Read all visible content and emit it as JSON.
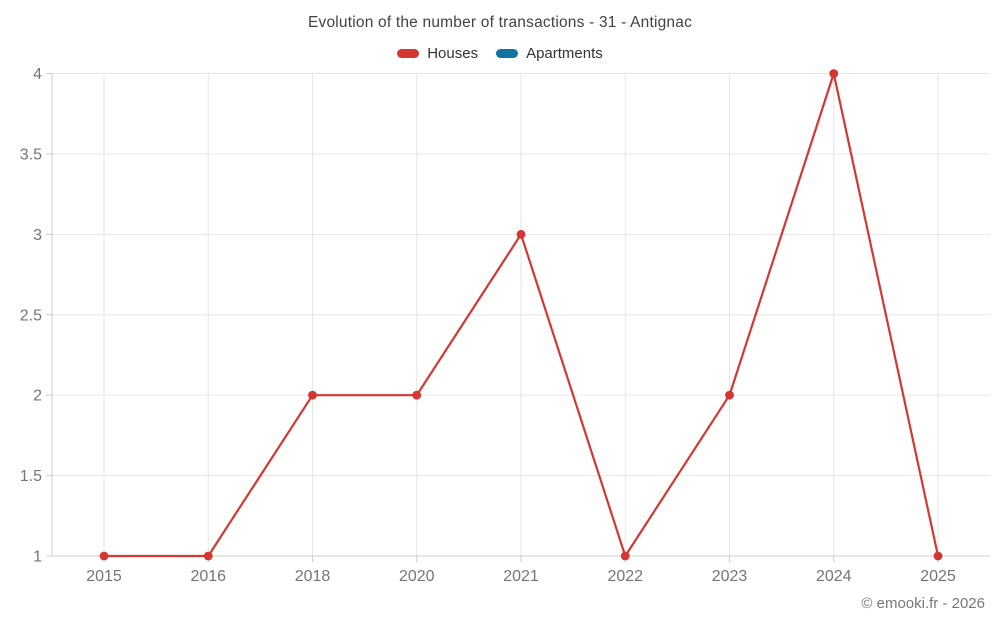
{
  "title": "Evolution of the number of transactions - 31 - Antignac",
  "watermark": "© emooki.fr - 2026",
  "legend": [
    {
      "label": "Houses",
      "color": "#d43732"
    },
    {
      "label": "Apartments",
      "color": "#11749e"
    }
  ],
  "colors": {
    "grid": "#e6e6e6",
    "axis": "#cccccc",
    "axis_text": "#757575",
    "title_text": "#424242"
  },
  "chart_data": {
    "type": "line",
    "title": "Evolution of the number of transactions - 31 - Antignac",
    "categories": [
      "2015",
      "2016",
      "2018",
      "2020",
      "2021",
      "2022",
      "2023",
      "2024",
      "2025"
    ],
    "series": [
      {
        "name": "Houses",
        "color": "#d43732",
        "values": [
          1,
          1,
          2,
          2,
          3,
          1,
          2,
          4,
          1
        ]
      },
      {
        "name": "Apartments",
        "color": "#11749e",
        "values": []
      }
    ],
    "xlabel": "",
    "ylabel": "",
    "ylim": [
      1,
      4
    ],
    "yticks": [
      1,
      1.5,
      2,
      2.5,
      3,
      3.5,
      4
    ],
    "grid": true,
    "legend_position": "top",
    "marker": "circle"
  }
}
